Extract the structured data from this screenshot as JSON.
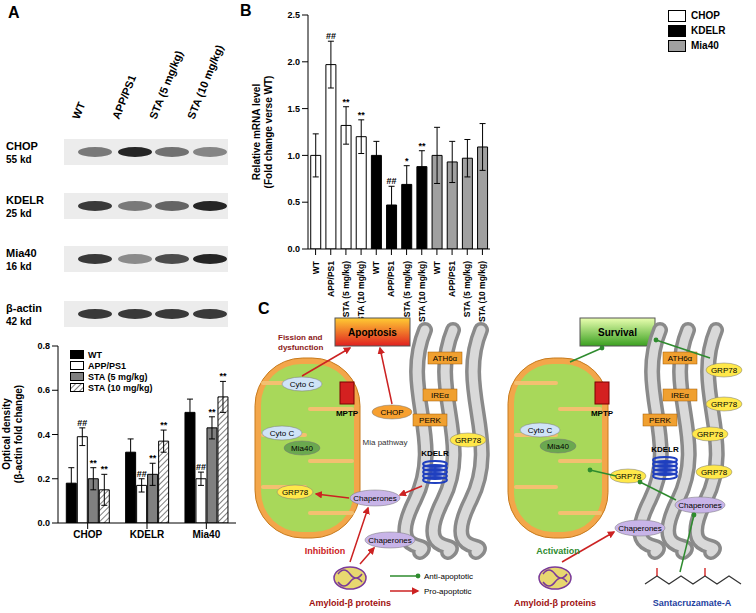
{
  "panels": [
    "A",
    "B",
    "C"
  ],
  "blot": {
    "lanes": [
      "WT",
      "APP/PS1",
      "STA (5 mg/kg)",
      "STA (10 mg/kg)"
    ],
    "rows": [
      {
        "name": "CHOP",
        "size": "55 kd"
      },
      {
        "name": "KDELR",
        "size": "25 kd"
      },
      {
        "name": "Mia40",
        "size": "16 kd"
      },
      {
        "name": "β-actin",
        "size": "42 kd"
      }
    ]
  },
  "chart_data": [
    {
      "type": "bar",
      "y_label": [
        "Optical density",
        "(β-actin fold change)"
      ],
      "categories": [
        "CHOP",
        "KDELR",
        "Mia40"
      ],
      "series": [
        {
          "name": "WT",
          "color": "#000000",
          "values": [
            0.18,
            0.32,
            0.5
          ],
          "errors": [
            0.07,
            0.06,
            0.06
          ]
        },
        {
          "name": "APP/PS1",
          "color": "#ffffff",
          "values": [
            0.39,
            0.17,
            0.2
          ],
          "errors": [
            0.04,
            0.03,
            0.03
          ],
          "annotations": [
            "##",
            "##",
            "##"
          ]
        },
        {
          "name": "STA (5 mg/kg)",
          "color": "#808080",
          "values": [
            0.2,
            0.22,
            0.43
          ],
          "errors": [
            0.05,
            0.05,
            0.05
          ],
          "annotations": [
            "**",
            "**",
            "**"
          ]
        },
        {
          "name": "STA (10 mg/kg)",
          "color": "#808080",
          "marker": "hatch",
          "values": [
            0.15,
            0.37,
            0.57
          ],
          "errors": [
            0.07,
            0.05,
            0.07
          ],
          "annotations": [
            "**",
            "**",
            "**"
          ]
        }
      ],
      "ylim": [
        0,
        0.8
      ],
      "yticks": [
        {
          "value": 0,
          "label": "0.0"
        },
        {
          "value": 0.2,
          "label": "0.2"
        },
        {
          "value": 0.4,
          "label": "0.4"
        },
        {
          "value": 0.6,
          "label": "0.6"
        },
        {
          "value": 0.8,
          "label": "0.8"
        }
      ],
      "legend": "upper left"
    },
    {
      "type": "bar",
      "y_label": [
        "Relative mRNA level",
        "(Fold change verse WT)"
      ],
      "categories": [
        "WT",
        "APP/PS1",
        "STA (5 mg/kg)",
        "STA (10 mg/kg)",
        "WT",
        "APP/PS1",
        "STA (5 mg/kg)",
        "STA (10 mg/kg)",
        "WT",
        "APP/PS1",
        "STA (5 mg/kg)",
        "STA (10 mg/kg)"
      ],
      "series": [
        {
          "name": "CHOP",
          "color": "#ffffff",
          "values": [
            1.0,
            1.97,
            1.32,
            1.2,
            null,
            null,
            null,
            null,
            null,
            null,
            null,
            null
          ],
          "errors": [
            0.23,
            0.25,
            0.2,
            0.18,
            null,
            null,
            null,
            null,
            null,
            null,
            null,
            null
          ],
          "annotations": [
            null,
            "##",
            "**",
            "**",
            null,
            null,
            null,
            null,
            null,
            null,
            null,
            null
          ]
        },
        {
          "name": "KDELR",
          "color": "#000000",
          "values": [
            null,
            null,
            null,
            null,
            1.0,
            0.47,
            0.69,
            0.88,
            null,
            null,
            null,
            null
          ],
          "errors": [
            null,
            null,
            null,
            null,
            0.15,
            0.2,
            0.2,
            0.17,
            null,
            null,
            null,
            null
          ],
          "annotations": [
            null,
            null,
            null,
            null,
            null,
            "##",
            "*",
            "**",
            null,
            null,
            null,
            null
          ]
        },
        {
          "name": "Mia40",
          "color": "#a0a0a0",
          "values": [
            null,
            null,
            null,
            null,
            null,
            null,
            null,
            null,
            1.0,
            0.93,
            0.97,
            1.09
          ],
          "errors": [
            null,
            null,
            null,
            null,
            null,
            null,
            null,
            null,
            0.3,
            0.22,
            0.2,
            0.25
          ]
        }
      ],
      "ylim": [
        0,
        2.5
      ],
      "yticks": [
        {
          "value": 0,
          "label": "0.0"
        },
        {
          "value": 0.5,
          "label": "0.5"
        },
        {
          "value": 1,
          "label": "1.0"
        },
        {
          "value": 1.5,
          "label": "1.5"
        },
        {
          "value": 2,
          "label": "2.0"
        },
        {
          "value": 2.5,
          "label": "2.5"
        }
      ],
      "legend": "upper right"
    }
  ],
  "diagram": {
    "left": {
      "outcome": "Apoptosis",
      "note": [
        "Fission and",
        "dysfunction"
      ],
      "cyto_c": "Cyto C",
      "mptp": "MPTP",
      "chop": "CHOP",
      "mia40": "Mia40",
      "mia_pathway": "Mia pathway",
      "grp78": "GRP78",
      "kdelr": "KDELR",
      "chaperones": "Chaperones",
      "action": "Inhibition",
      "trigger": "Amyloid-β proteins",
      "er_sensors": [
        "ATH6α",
        "IREα",
        "PERK"
      ]
    },
    "right": {
      "outcome": "Survival",
      "cyto_c": "Cyto C",
      "mptp": "MPTP",
      "mia40": "Mia40",
      "grp78": "GRP78",
      "kdelr": "KDELR",
      "chaperones": "Chaperones",
      "action": "Activation",
      "trigger": "Amyloid-β proteins",
      "compound": "Santacruzamate-A",
      "er_sensors": [
        "ATH6α",
        "IREα",
        "PERK"
      ]
    },
    "legend": [
      {
        "label": "Anti-apoptotic",
        "color": "#2e8b2e"
      },
      {
        "label": "Pro-apoptotic",
        "color": "#cc2222"
      }
    ]
  }
}
